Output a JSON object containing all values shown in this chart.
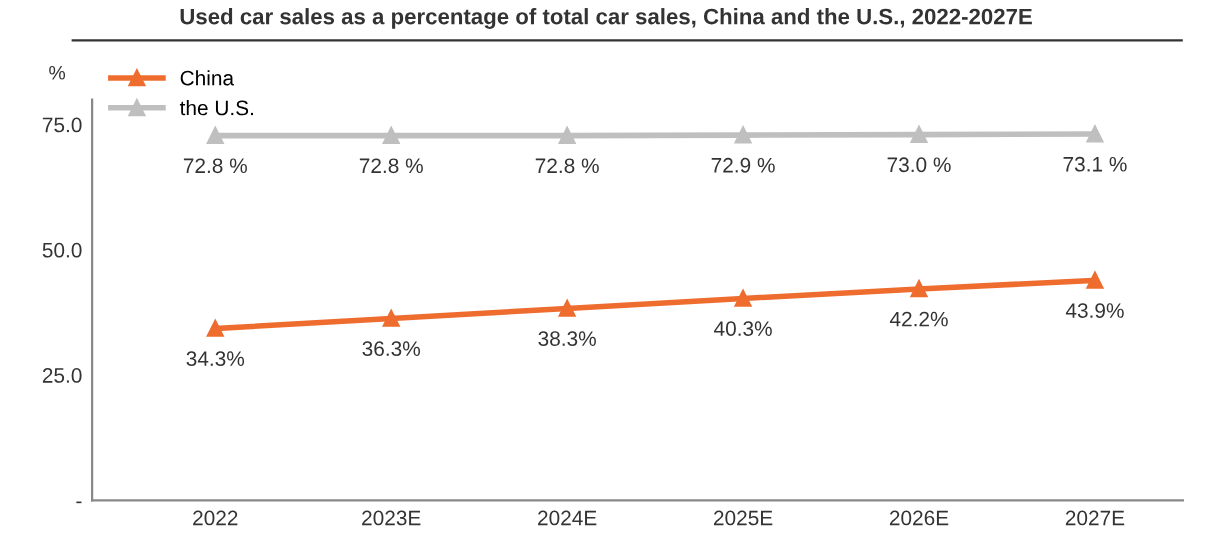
{
  "chart_data": {
    "type": "line",
    "title": "Used car sales as a percentage of total car sales, China and the U.S., 2022-2027E",
    "ylabel": "%",
    "categories": [
      "2022",
      "2023E",
      "2024E",
      "2025E",
      "2026E",
      "2027E"
    ],
    "series": [
      {
        "name": "China",
        "color": "#ef6c2f",
        "values": [
          34.3,
          36.3,
          38.3,
          40.3,
          42.2,
          43.9
        ],
        "value_labels": [
          "34.3%",
          "36.3%",
          "38.3%",
          "40.3%",
          "42.2%",
          "43.9%"
        ]
      },
      {
        "name": "the U.S.",
        "color": "#bfbfbf",
        "values": [
          72.8,
          72.8,
          72.8,
          72.9,
          73.0,
          73.1
        ],
        "value_labels": [
          "72.8 %",
          "72.8 %",
          "72.8 %",
          "72.9 %",
          "73.0 %",
          "73.1 %"
        ]
      }
    ],
    "ylim": [
      0,
      80
    ],
    "yticks": [
      {
        "value": 0,
        "label": "-"
      },
      {
        "value": 25,
        "label": "25.0"
      },
      {
        "value": 50,
        "label": "50.0"
      },
      {
        "value": 75,
        "label": "75.0"
      }
    ],
    "marker": "triangle",
    "line_style": "solid",
    "grid": false,
    "legend": "top left"
  }
}
